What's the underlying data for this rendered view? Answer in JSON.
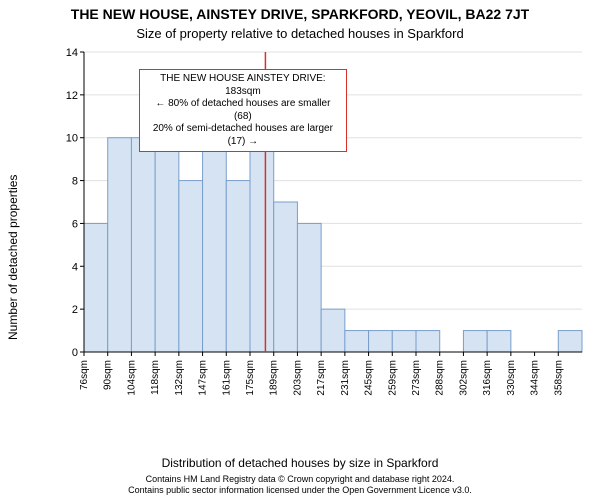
{
  "chart": {
    "type": "histogram",
    "title": "THE NEW HOUSE, AINSTEY DRIVE, SPARKFORD, YEOVIL, BA22 7JT",
    "subtitle": "Size of property relative to detached houses in Sparkford",
    "ylabel": "Number of detached properties",
    "xlabel": "Distribution of detached houses by size in Sparkford",
    "title_fontsize": 14,
    "subtitle_fontsize": 13,
    "label_fontsize": 12,
    "tick_fontsize": 11,
    "xtick_fontsize": 10,
    "background_color": "#ffffff",
    "bar_fill": "#d6e3f3",
    "bar_stroke": "#7a9ecb",
    "axis_color": "#000000",
    "grid_color": "#e0e0e0",
    "marker_color": "#d9302c",
    "callout_border": "#d9302c",
    "ylim": [
      0,
      14
    ],
    "ytick_step": 2,
    "xticks": [
      "76sqm",
      "90sqm",
      "104sqm",
      "118sqm",
      "132sqm",
      "147sqm",
      "161sqm",
      "175sqm",
      "189sqm",
      "203sqm",
      "217sqm",
      "231sqm",
      "245sqm",
      "259sqm",
      "273sqm",
      "288sqm",
      "302sqm",
      "316sqm",
      "330sqm",
      "344sqm",
      "358sqm"
    ],
    "values": [
      6,
      10,
      10,
      11,
      8,
      10,
      8,
      12,
      7,
      6,
      2,
      1,
      1,
      1,
      1,
      0,
      1,
      1,
      0,
      0,
      1
    ],
    "bar_width_ratio": 1.0,
    "marker_bin_index": 8,
    "callout": {
      "line1": "THE NEW HOUSE AINSTEY DRIVE: 183sqm",
      "line2": "← 80% of detached houses are smaller (68)",
      "line3": "20% of semi-detached houses are larger (17) →"
    }
  },
  "credits": {
    "line1": "Contains HM Land Registry data © Crown copyright and database right 2024.",
    "line2": "Contains public sector information licensed under the Open Government Licence v3.0."
  }
}
